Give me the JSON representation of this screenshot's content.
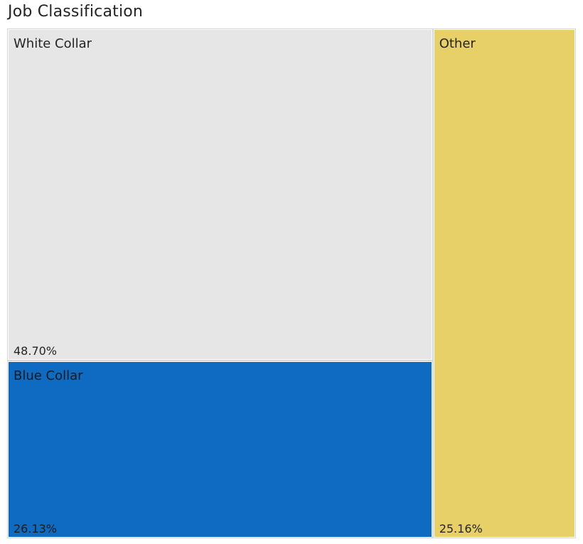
{
  "visual": {
    "title": "Job Classification"
  },
  "chart_data": {
    "type": "treemap",
    "title": "Job Classification",
    "items": [
      {
        "category": "White Collar",
        "value": 48.7,
        "label": "48.70%",
        "color": "#e6e6e6",
        "text_color": "#252423"
      },
      {
        "category": "Blue Collar",
        "value": 26.13,
        "label": "26.13%",
        "color": "#0f6bc1",
        "text_color": "#1a1a1a"
      },
      {
        "category": "Other",
        "value": 25.16,
        "label": "25.16%",
        "color": "#e8d068",
        "text_color": "#252423"
      }
    ]
  }
}
